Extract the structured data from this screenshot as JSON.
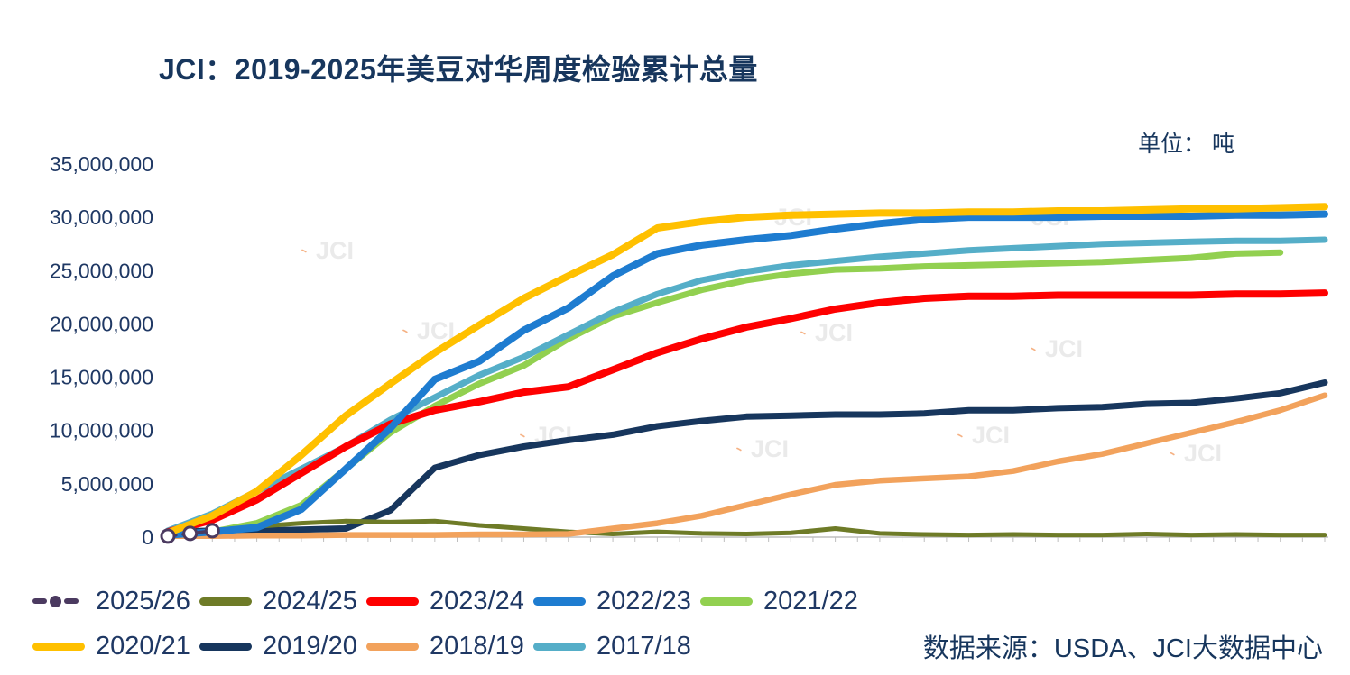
{
  "watermark": "JCI",
  "chart_data": {
    "type": "line",
    "title": "JCI：2019-2025年美豆对华周度检验累计总量",
    "unit_label": "单位： 吨",
    "source": "数据来源：USDA、JCI大数据中心",
    "xlabel": "",
    "ylabel": "",
    "ylim": [
      0,
      35000000
    ],
    "y_tick_step": 5000000,
    "y_tick_labels": [
      "0",
      "5,000,000",
      "10,000,000",
      "15,000,000",
      "20,000,000",
      "25,000,000",
      "30,000,000",
      "35,000,000"
    ],
    "x_axis": {
      "unit": "week",
      "range": [
        0,
        52
      ],
      "labels_visible": false
    },
    "grid": false,
    "legend_position": "bottom",
    "x": [
      0,
      2,
      4,
      6,
      8,
      10,
      12,
      14,
      16,
      18,
      20,
      22,
      24,
      26,
      28,
      30,
      32,
      34,
      36,
      38,
      40,
      42,
      44,
      46,
      48,
      50,
      52
    ],
    "series": [
      {
        "name": "2025/26",
        "color": "#4B3A60",
        "style": "dashed",
        "marker": "circle",
        "x": [
          0,
          1,
          2
        ],
        "values": [
          100000,
          350000,
          600000
        ]
      },
      {
        "name": "2024/25",
        "color": "#6E7B27",
        "style": "solid",
        "values": [
          300000,
          600000,
          1000000,
          1300000,
          1500000,
          1400000,
          1500000,
          1100000,
          800000,
          500000,
          300000,
          500000,
          350000,
          300000,
          400000,
          800000,
          350000,
          250000,
          200000,
          250000,
          200000,
          200000,
          300000,
          200000,
          250000,
          200000,
          200000
        ]
      },
      {
        "name": "2023/24",
        "color": "#FE0000",
        "style": "solid",
        "values": [
          500000,
          1600000,
          3500000,
          6000000,
          8500000,
          10600000,
          11900000,
          12700000,
          13600000,
          14100000,
          15700000,
          17300000,
          18600000,
          19700000,
          20500000,
          21400000,
          22000000,
          22400000,
          22600000,
          22600000,
          22700000,
          22700000,
          22700000,
          22700000,
          22800000,
          22800000,
          22900000
        ]
      },
      {
        "name": "2022/23",
        "color": "#1E7CD0",
        "style": "solid",
        "values": [
          200000,
          500000,
          900000,
          2600000,
          6400000,
          10200000,
          14800000,
          16500000,
          19400000,
          21500000,
          24500000,
          26600000,
          27400000,
          27900000,
          28300000,
          28900000,
          29400000,
          29800000,
          30000000,
          30000000,
          30000000,
          30100000,
          30100000,
          30100000,
          30200000,
          30200000,
          30300000
        ]
      },
      {
        "name": "2021/22",
        "color": "#92D050",
        "style": "solid",
        "values": [
          200000,
          500000,
          1300000,
          3000000,
          6400000,
          9800000,
          12300000,
          14400000,
          16100000,
          18600000,
          20700000,
          22000000,
          23200000,
          24100000,
          24700000,
          25100000,
          25200000,
          25400000,
          25500000,
          25600000,
          25700000,
          25800000,
          26000000,
          26200000,
          26600000,
          26700000,
          null
        ]
      },
      {
        "name": "2020/21",
        "color": "#FFC000",
        "style": "solid",
        "values": [
          400000,
          2000000,
          4300000,
          7700000,
          11400000,
          14400000,
          17300000,
          19900000,
          22400000,
          24500000,
          26500000,
          29000000,
          29600000,
          30000000,
          30200000,
          30300000,
          30400000,
          30400000,
          30500000,
          30500000,
          30600000,
          30600000,
          30700000,
          30800000,
          30800000,
          30900000,
          31000000
        ]
      },
      {
        "name": "2019/20",
        "color": "#17365D",
        "style": "solid",
        "values": [
          500000,
          600000,
          600000,
          700000,
          800000,
          2500000,
          6500000,
          7700000,
          8500000,
          9100000,
          9600000,
          10400000,
          10900000,
          11300000,
          11400000,
          11500000,
          11500000,
          11600000,
          11900000,
          11900000,
          12100000,
          12200000,
          12500000,
          12600000,
          13000000,
          13500000,
          14500000
        ]
      },
      {
        "name": "2018/19",
        "color": "#F2A25C",
        "style": "solid",
        "values": [
          100000,
          100000,
          150000,
          150000,
          200000,
          200000,
          200000,
          250000,
          250000,
          300000,
          800000,
          1300000,
          2000000,
          3000000,
          4000000,
          4900000,
          5300000,
          5500000,
          5700000,
          6200000,
          7100000,
          7800000,
          8800000,
          9800000,
          10800000,
          11900000,
          13300000
        ]
      },
      {
        "name": "2017/18",
        "color": "#55AEC8",
        "style": "solid",
        "values": [
          600000,
          2200000,
          4300000,
          6400000,
          8500000,
          11000000,
          13100000,
          15200000,
          16900000,
          19000000,
          21100000,
          22800000,
          24100000,
          24900000,
          25500000,
          25900000,
          26300000,
          26600000,
          26900000,
          27100000,
          27300000,
          27500000,
          27600000,
          27700000,
          27800000,
          27800000,
          27900000
        ]
      }
    ]
  }
}
